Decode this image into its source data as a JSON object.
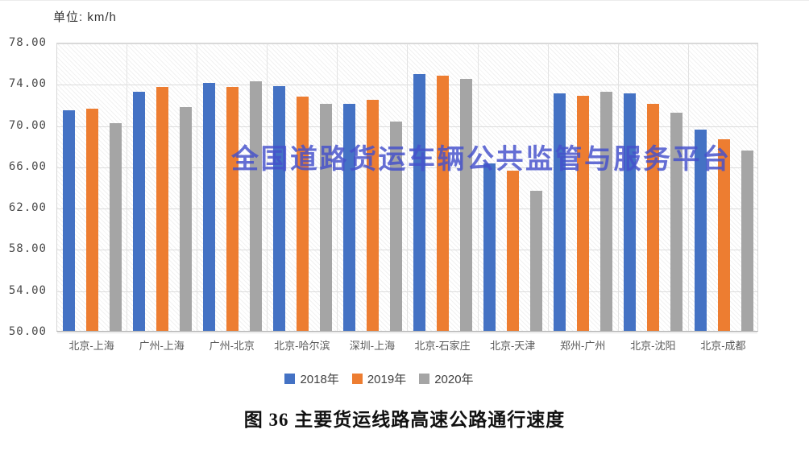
{
  "page": {
    "unit_label": "单位: km/h"
  },
  "watermark": {
    "text": "全国道路货运车辆公共监管与服务平台",
    "color": "#4450CC"
  },
  "caption": {
    "text": "图 36 主要货运线路高速公路通行速度"
  },
  "chart_data": {
    "type": "bar",
    "title": "图 36 主要货运线路高速公路通行速度",
    "unit": "km/h",
    "categories": [
      "北京-上海",
      "广州-上海",
      "广州-北京",
      "北京-哈尔滨",
      "深圳-上海",
      "北京-石家庄",
      "北京-天津",
      "郑州-广州",
      "北京-沈阳",
      "北京-成都"
    ],
    "series": [
      {
        "name": "2018年",
        "color": "#4472C4",
        "values": [
          71.4,
          73.2,
          74.0,
          73.7,
          72.0,
          74.9,
          66.2,
          73.0,
          73.0,
          69.5
        ]
      },
      {
        "name": "2019年",
        "color": "#ED7D31",
        "values": [
          71.5,
          73.6,
          73.6,
          72.7,
          72.4,
          74.7,
          65.5,
          72.8,
          72.0,
          68.6
        ]
      },
      {
        "name": "2020年",
        "color": "#A5A5A5",
        "values": [
          70.1,
          71.7,
          74.2,
          72.0,
          70.3,
          74.4,
          63.6,
          73.2,
          71.1,
          67.5
        ]
      }
    ],
    "ylim": [
      50,
      78
    ],
    "yticks": [
      78,
      74,
      70,
      66,
      62,
      58,
      54,
      50
    ],
    "ytick_labels": [
      "78.00",
      "74.00",
      "70.00",
      "66.00",
      "62.00",
      "58.00",
      "54.00",
      "50.00"
    ],
    "grid": true,
    "legend_position": "bottom"
  }
}
